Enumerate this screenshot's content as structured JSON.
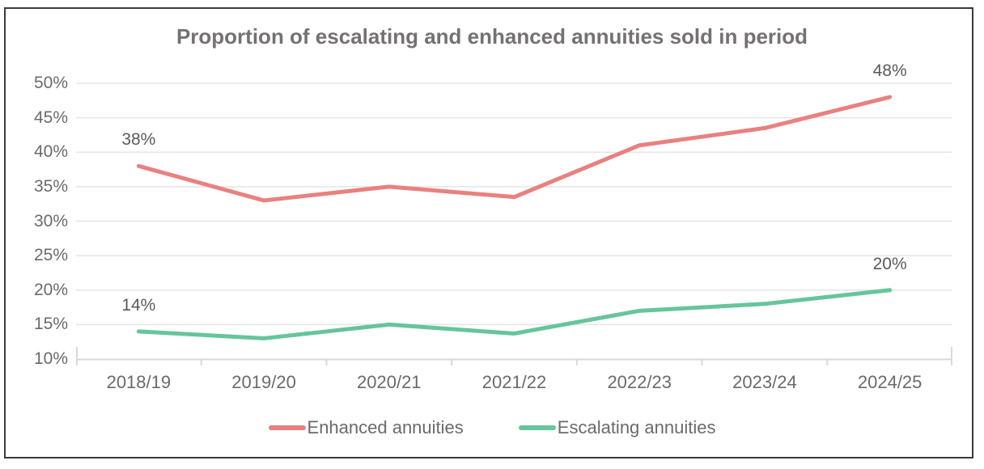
{
  "chart_data": {
    "type": "line",
    "title": "Proportion of escalating and enhanced annuities sold in period",
    "categories": [
      "2018/19",
      "2019/20",
      "2020/21",
      "2021/22",
      "2022/23",
      "2023/24",
      "2024/25"
    ],
    "series": [
      {
        "name": "Enhanced annuities",
        "color": "#e8817f",
        "values": [
          38,
          33,
          35,
          33.5,
          41,
          43.5,
          48
        ]
      },
      {
        "name": "Escalating annuities",
        "color": "#66c59b",
        "values": [
          14,
          13,
          15,
          13.7,
          17,
          18,
          20
        ]
      }
    ],
    "data_labels": [
      {
        "series": 0,
        "index": 0,
        "text": "38%"
      },
      {
        "series": 0,
        "index": 6,
        "text": "48%"
      },
      {
        "series": 1,
        "index": 0,
        "text": "14%"
      },
      {
        "series": 1,
        "index": 6,
        "text": "20%"
      }
    ],
    "y_ticks": [
      "50%",
      "45%",
      "40%",
      "35%",
      "30%",
      "25%",
      "20%",
      "15%",
      "10%"
    ],
    "ylim": [
      10,
      50
    ],
    "y_step": 5,
    "xlabel": "",
    "ylabel": "",
    "grid": true,
    "legend_position": "bottom",
    "colors": {
      "title_text": "#767171",
      "axis_text": "#6e6969",
      "data_label_text": "#5d5858",
      "gridline": "#e5e5e5",
      "axis_line": "#d9d9d9",
      "frame_border": "#3b3b3b"
    }
  }
}
